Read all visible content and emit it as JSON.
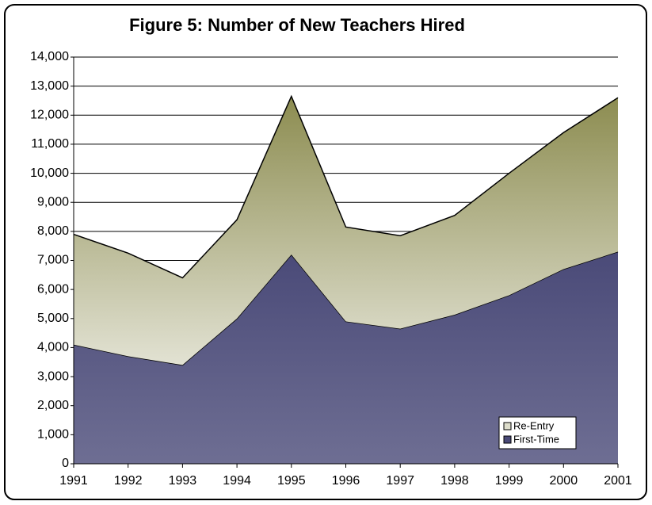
{
  "chart_data": {
    "type": "stacked_area",
    "title": "Figure 5: Number of New Teachers Hired",
    "categories": [
      "1991",
      "1992",
      "1993",
      "1994",
      "1995",
      "1996",
      "1997",
      "1998",
      "1999",
      "2000",
      "2001"
    ],
    "series": [
      {
        "name": "First-Time",
        "color": "#4a4a78",
        "values": [
          4100,
          3700,
          3400,
          5000,
          7200,
          4900,
          4650,
          5130,
          5800,
          6700,
          7300
        ]
      },
      {
        "name": "Re-Entry",
        "color": "#8c8c50",
        "values": [
          3800,
          3550,
          3000,
          3400,
          5450,
          3250,
          3200,
          3420,
          4200,
          4700,
          5300
        ]
      }
    ],
    "ylim": [
      0,
      14000
    ],
    "yticks": [
      0,
      {
        "value": 1000,
        "label": "1,000"
      },
      {
        "value": 2000,
        "label": "2,000"
      },
      {
        "value": 3000,
        "label": "3,000"
      },
      {
        "value": 4000,
        "label": "4,000"
      },
      {
        "value": 5000,
        "label": "5,000"
      },
      {
        "value": 6000,
        "label": "6,000"
      },
      {
        "value": 7000,
        "label": "7,000"
      },
      {
        "value": 8000,
        "label": "8,000"
      },
      {
        "value": 9000,
        "label": "9,000"
      },
      {
        "value": 10000,
        "label": "10,000"
      },
      {
        "value": 11000,
        "label": "11,000"
      },
      {
        "value": 12000,
        "label": "12,000"
      },
      {
        "value": 13000,
        "label": "13,000"
      },
      {
        "value": 14000,
        "label": "14,000"
      }
    ],
    "grid": true,
    "legend": "lower right"
  }
}
